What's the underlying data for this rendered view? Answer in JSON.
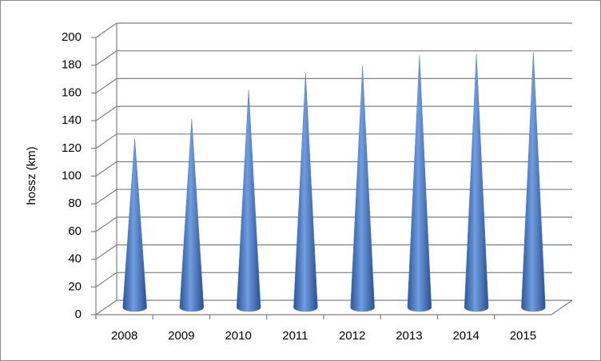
{
  "chart_data": {
    "type": "cone",
    "y_label": "hossz (km)",
    "categories": [
      "2008",
      "2009",
      "2010",
      "2011",
      "2012",
      "2013",
      "2014",
      "2015"
    ],
    "values": [
      122,
      136,
      157,
      169,
      174,
      182,
      183,
      184
    ],
    "color": "#4a7cc9",
    "ylim": [
      0,
      200
    ],
    "yticks": [
      0,
      20,
      40,
      60,
      80,
      100,
      120,
      140,
      160,
      180,
      200
    ],
    "grid": true
  }
}
